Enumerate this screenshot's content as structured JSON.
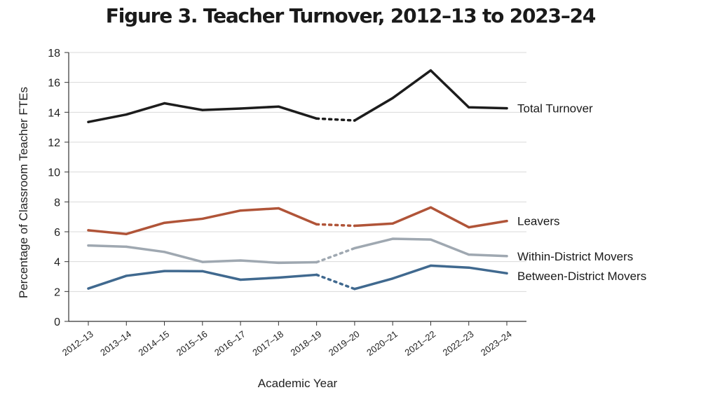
{
  "chart_data": {
    "type": "line",
    "title": "Figure 3. Teacher Turnover, 2012–13 to 2023–24",
    "xlabel": "Academic Year",
    "ylabel": "Percentage of Classroom Teacher FTEs",
    "ylim": [
      0,
      18
    ],
    "yticks": [
      0,
      2,
      4,
      6,
      8,
      10,
      12,
      14,
      16,
      18
    ],
    "grid": true,
    "categories": [
      "2012–13",
      "2013–14",
      "2014–15",
      "2015–16",
      "2016–17",
      "2017–18",
      "2018–19",
      "2019–20",
      "2020–21",
      "2021–22",
      "2022–23",
      "2023–24"
    ],
    "dashed_segment": [
      "2018–19",
      "2019–20"
    ],
    "series": [
      {
        "name": "Total Turnover",
        "color": "#1c1c1c",
        "values": [
          13.35,
          13.85,
          14.6,
          14.15,
          14.25,
          14.38,
          13.58,
          13.45,
          14.95,
          16.8,
          14.33,
          14.27
        ]
      },
      {
        "name": "Leavers",
        "color": "#b05438",
        "values": [
          6.1,
          5.85,
          6.6,
          6.87,
          7.42,
          7.57,
          6.5,
          6.4,
          6.55,
          7.63,
          6.3,
          6.72
        ]
      },
      {
        "name": "Within-District Movers",
        "color": "#9fa8b1",
        "values": [
          5.08,
          5.0,
          4.65,
          3.98,
          4.08,
          3.92,
          3.96,
          4.9,
          5.53,
          5.48,
          4.47,
          4.37
        ]
      },
      {
        "name": "Between-District Movers",
        "color": "#40698f",
        "values": [
          2.2,
          3.05,
          3.37,
          3.36,
          2.79,
          2.93,
          3.12,
          2.17,
          2.87,
          3.73,
          3.6,
          3.22
        ]
      }
    ]
  }
}
